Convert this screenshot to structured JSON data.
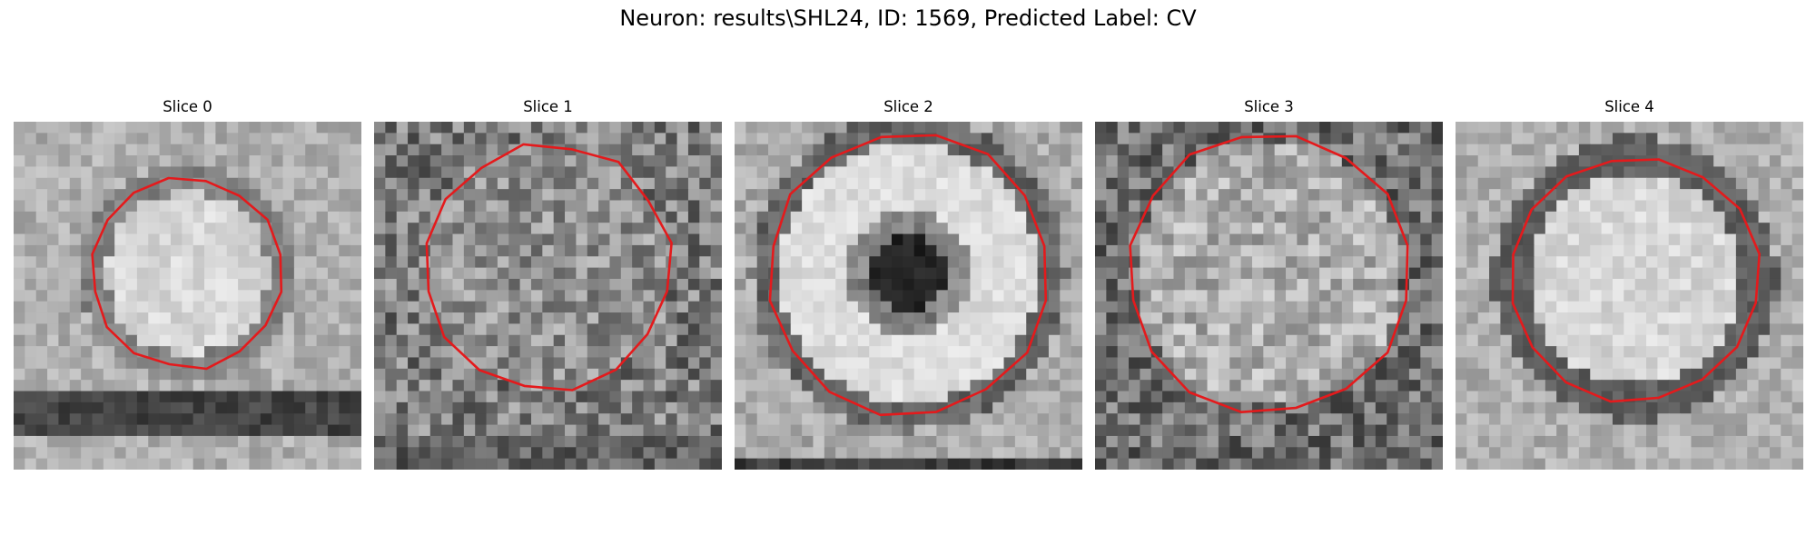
{
  "figure": {
    "title": "Neuron: results\\SHL24, ID: 1569, Predicted Label: CV",
    "contour_color": "#e41a1c",
    "panels": [
      {
        "title": "Slice 0",
        "pattern": "disk"
      },
      {
        "title": "Slice 1",
        "pattern": "noisy"
      },
      {
        "title": "Slice 2",
        "pattern": "ring"
      },
      {
        "title": "Slice 3",
        "pattern": "speckle"
      },
      {
        "title": "Slice 4",
        "pattern": "disk-dark-edge"
      }
    ]
  }
}
